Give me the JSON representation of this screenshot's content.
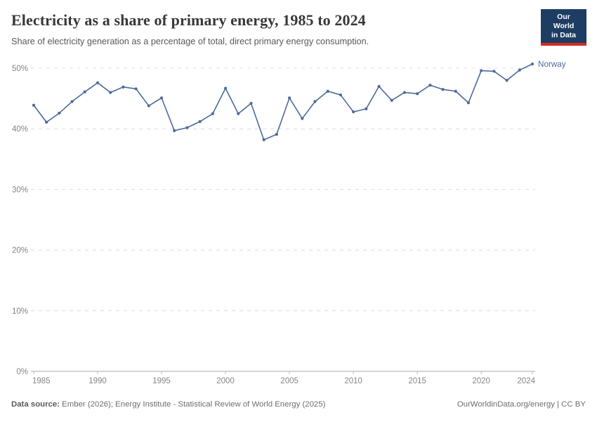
{
  "header": {
    "title": "Electricity as a share of primary energy, 1985 to 2024",
    "subtitle": "Share of electricity generation as a percentage of total, direct primary energy consumption.",
    "logo": {
      "line1": "Our World",
      "line2": "in Data"
    }
  },
  "footer": {
    "datasource_label": "Data source:",
    "datasource_text": " Ember (2026); Energy Institute - Statistical Review of World Energy (2025)",
    "credit": "OurWorldinData.org/energy | CC BY"
  },
  "colors": {
    "series": "#4c6a9c",
    "gridline": "#dcdcdc",
    "axis_line": "#a8a8a8",
    "tick": "#bbbbbb",
    "axis_text": "#858585",
    "logo_bg": "#1d3d63",
    "logo_accent": "#d42b20"
  },
  "chart_data": {
    "type": "line",
    "title": "Electricity as a share of primary energy, 1985 to 2024",
    "xlabel": "",
    "ylabel": "",
    "ylim": [
      0,
      50
    ],
    "xlim": [
      1985,
      2024
    ],
    "grid": "horizontal-dashed",
    "legend_position": "end-of-line-label",
    "ytick_values": [
      0,
      10,
      20,
      30,
      40,
      50
    ],
    "ytick_labels": [
      "0%",
      "10%",
      "20%",
      "30%",
      "40%",
      "50%"
    ],
    "xtick_values": [
      1985,
      1990,
      1995,
      2000,
      2005,
      2010,
      2015,
      2020,
      2024
    ],
    "xtick_labels": [
      "1985",
      "1990",
      "1995",
      "2000",
      "2005",
      "2010",
      "2015",
      "2020",
      "2024"
    ],
    "series": [
      {
        "name": "Norway",
        "color": "#4c6a9c",
        "x": [
          1985,
          1986,
          1987,
          1988,
          1989,
          1990,
          1991,
          1992,
          1993,
          1994,
          1995,
          1996,
          1997,
          1998,
          1999,
          2000,
          2001,
          2002,
          2003,
          2004,
          2005,
          2006,
          2007,
          2008,
          2009,
          2010,
          2011,
          2012,
          2013,
          2014,
          2015,
          2016,
          2017,
          2018,
          2019,
          2020,
          2021,
          2022,
          2023,
          2024
        ],
        "values": [
          43.9,
          41.1,
          42.6,
          44.5,
          46.1,
          47.6,
          46.0,
          46.9,
          46.6,
          43.8,
          45.1,
          39.7,
          40.2,
          41.2,
          42.5,
          46.7,
          42.5,
          44.2,
          38.2,
          39.1,
          45.1,
          41.7,
          44.5,
          46.2,
          45.6,
          42.8,
          43.3,
          47.0,
          44.7,
          46.0,
          45.8,
          47.2,
          46.5,
          46.2,
          44.3,
          49.6,
          49.5,
          48.0,
          49.7,
          50.7
        ]
      }
    ]
  }
}
